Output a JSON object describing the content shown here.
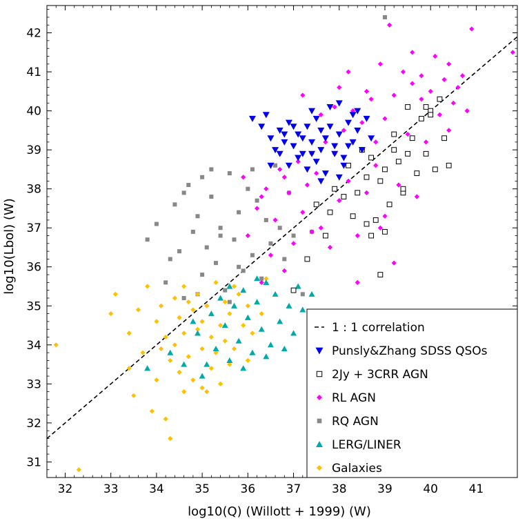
{
  "chart_data": {
    "type": "scatter",
    "xlabel": "log10(Q)  (Willott +  1999)  (W)",
    "ylabel": "log10(Lbol)  (W)",
    "xlim": [
      31.6,
      41.9
    ],
    "ylim": [
      30.6,
      42.7
    ],
    "xticks": [
      32,
      33,
      34,
      35,
      36,
      37,
      38,
      39,
      40,
      41
    ],
    "yticks": [
      31,
      32,
      33,
      34,
      35,
      36,
      37,
      38,
      39,
      40,
      41,
      42
    ],
    "grid": false,
    "legend_position": "bottom-right",
    "reference_line": {
      "name": "1 : 1 correlation",
      "style": "dashed",
      "color": "#000000",
      "x": [
        31.6,
        41.9
      ],
      "y": [
        31.6,
        41.9
      ]
    },
    "series": [
      {
        "name": "Punsly&Zhang SDSS QSOs",
        "marker": "triangle-down",
        "color": "#0000ee",
        "points": [
          [
            36.1,
            39.8
          ],
          [
            36.3,
            39.6
          ],
          [
            36.4,
            39.9
          ],
          [
            36.5,
            39.3
          ],
          [
            36.6,
            39.0
          ],
          [
            36.7,
            39.5
          ],
          [
            36.8,
            39.2
          ],
          [
            36.9,
            39.7
          ],
          [
            37.0,
            39.1
          ],
          [
            37.1,
            39.4
          ],
          [
            37.2,
            38.9
          ],
          [
            37.3,
            39.6
          ],
          [
            37.4,
            39.2
          ],
          [
            37.5,
            39.8
          ],
          [
            37.6,
            39.0
          ],
          [
            37.7,
            39.3
          ],
          [
            37.8,
            39.6
          ],
          [
            37.9,
            39.1
          ],
          [
            38.0,
            39.4
          ],
          [
            38.1,
            38.8
          ],
          [
            38.2,
            39.7
          ],
          [
            38.3,
            39.2
          ],
          [
            38.4,
            39.5
          ],
          [
            38.5,
            39.0
          ],
          [
            38.6,
            39.8
          ],
          [
            38.7,
            39.3
          ],
          [
            36.9,
            38.6
          ],
          [
            37.1,
            38.8
          ],
          [
            37.3,
            38.5
          ],
          [
            37.5,
            38.7
          ],
          [
            37.7,
            38.4
          ],
          [
            37.9,
            38.9
          ],
          [
            38.1,
            38.6
          ],
          [
            38.3,
            39.9
          ],
          [
            37.4,
            40.0
          ],
          [
            37.8,
            40.1
          ],
          [
            38.0,
            40.2
          ],
          [
            38.4,
            40.0
          ],
          [
            36.7,
            38.9
          ],
          [
            36.5,
            38.6
          ],
          [
            37.6,
            39.5
          ],
          [
            37.2,
            39.3
          ],
          [
            37.0,
            39.6
          ],
          [
            36.8,
            39.4
          ],
          [
            38.2,
            39.1
          ],
          [
            37.4,
            38.9
          ],
          [
            37.6,
            38.2
          ],
          [
            38.0,
            38.3
          ]
        ]
      },
      {
        "name": "2Jy + 3CRR AGN",
        "marker": "open-square",
        "color": "#000000",
        "points": [
          [
            37.0,
            35.4
          ],
          [
            37.3,
            36.2
          ],
          [
            37.5,
            37.6
          ],
          [
            37.8,
            37.4
          ],
          [
            37.9,
            38.0
          ],
          [
            38.1,
            37.8
          ],
          [
            38.2,
            38.6
          ],
          [
            38.4,
            37.9
          ],
          [
            38.5,
            39.0
          ],
          [
            38.6,
            38.3
          ],
          [
            38.7,
            38.8
          ],
          [
            38.8,
            37.2
          ],
          [
            38.9,
            38.2
          ],
          [
            39.0,
            38.5
          ],
          [
            39.1,
            37.6
          ],
          [
            39.2,
            39.4
          ],
          [
            39.3,
            38.7
          ],
          [
            39.4,
            37.9
          ],
          [
            39.5,
            38.9
          ],
          [
            39.6,
            39.3
          ],
          [
            39.7,
            38.4
          ],
          [
            39.8,
            39.8
          ],
          [
            39.9,
            38.9
          ],
          [
            40.0,
            40.0
          ],
          [
            40.1,
            38.5
          ],
          [
            40.3,
            39.3
          ],
          [
            40.4,
            38.6
          ],
          [
            38.3,
            37.3
          ],
          [
            38.6,
            37.1
          ],
          [
            39.0,
            36.9
          ],
          [
            39.2,
            39.0
          ],
          [
            39.5,
            40.1
          ],
          [
            39.9,
            40.1
          ],
          [
            40.2,
            40.3
          ],
          [
            38.7,
            36.8
          ],
          [
            39.4,
            38.0
          ],
          [
            37.7,
            36.8
          ],
          [
            38.9,
            35.8
          ],
          [
            40.0,
            39.9
          ]
        ]
      },
      {
        "name": "RL AGN",
        "marker": "diamond",
        "color": "#ff00ff",
        "points": [
          [
            35.9,
            38.3
          ],
          [
            36.0,
            36.8
          ],
          [
            36.2,
            37.5
          ],
          [
            36.3,
            35.6
          ],
          [
            36.4,
            38.0
          ],
          [
            36.5,
            36.3
          ],
          [
            36.6,
            37.2
          ],
          [
            36.7,
            38.5
          ],
          [
            36.8,
            35.9
          ],
          [
            36.9,
            37.9
          ],
          [
            37.0,
            36.6
          ],
          [
            37.1,
            38.7
          ],
          [
            37.2,
            37.4
          ],
          [
            37.3,
            38.1
          ],
          [
            37.4,
            36.9
          ],
          [
            37.5,
            38.4
          ],
          [
            37.6,
            37.0
          ],
          [
            37.7,
            39.2
          ],
          [
            37.8,
            36.5
          ],
          [
            37.9,
            38.9
          ],
          [
            38.0,
            37.7
          ],
          [
            38.1,
            39.5
          ],
          [
            38.2,
            38.2
          ],
          [
            38.3,
            40.0
          ],
          [
            38.4,
            36.8
          ],
          [
            38.5,
            39.7
          ],
          [
            38.6,
            37.9
          ],
          [
            38.7,
            40.3
          ],
          [
            38.8,
            38.6
          ],
          [
            38.9,
            41.2
          ],
          [
            39.0,
            39.8
          ],
          [
            39.1,
            42.2
          ],
          [
            39.2,
            40.4
          ],
          [
            39.3,
            38.1
          ],
          [
            39.4,
            41.0
          ],
          [
            39.5,
            39.4
          ],
          [
            39.6,
            40.7
          ],
          [
            39.7,
            37.8
          ],
          [
            39.8,
            40.9
          ],
          [
            39.9,
            39.2
          ],
          [
            40.0,
            40.5
          ],
          [
            40.1,
            41.4
          ],
          [
            40.2,
            39.9
          ],
          [
            40.3,
            40.8
          ],
          [
            40.4,
            39.5
          ],
          [
            40.5,
            40.2
          ],
          [
            40.6,
            40.6
          ],
          [
            40.8,
            40.0
          ],
          [
            40.9,
            42.1
          ],
          [
            41.8,
            41.5
          ],
          [
            37.2,
            40.4
          ],
          [
            37.6,
            39.9
          ],
          [
            38.0,
            40.6
          ],
          [
            38.4,
            35.6
          ],
          [
            39.2,
            36.1
          ],
          [
            39.8,
            40.3
          ],
          [
            36.3,
            37.8
          ],
          [
            36.8,
            38.3
          ],
          [
            37.4,
            38.9
          ],
          [
            38.6,
            40.5
          ],
          [
            39.0,
            37.3
          ],
          [
            40.7,
            40.9
          ],
          [
            38.2,
            41.0
          ],
          [
            38.8,
            39.2
          ],
          [
            39.6,
            41.5
          ],
          [
            37.9,
            40.1
          ],
          [
            40.4,
            41.2
          ],
          [
            38.9,
            37.0
          ]
        ]
      },
      {
        "name": "RQ AGN",
        "marker": "square",
        "color": "#888888",
        "points": [
          [
            33.8,
            36.7
          ],
          [
            34.0,
            37.1
          ],
          [
            34.2,
            35.6
          ],
          [
            34.3,
            36.2
          ],
          [
            34.4,
            37.6
          ],
          [
            34.5,
            36.4
          ],
          [
            34.6,
            35.2
          ],
          [
            34.7,
            38.1
          ],
          [
            34.8,
            36.9
          ],
          [
            34.9,
            37.3
          ],
          [
            35.0,
            35.8
          ],
          [
            35.0,
            38.3
          ],
          [
            35.1,
            36.5
          ],
          [
            35.2,
            37.8
          ],
          [
            35.3,
            36.1
          ],
          [
            35.4,
            37.0
          ],
          [
            35.5,
            35.4
          ],
          [
            35.6,
            38.4
          ],
          [
            35.7,
            36.7
          ],
          [
            35.8,
            37.4
          ],
          [
            35.9,
            35.9
          ],
          [
            36.0,
            38.0
          ],
          [
            36.1,
            36.3
          ],
          [
            36.2,
            37.7
          ],
          [
            36.3,
            35.7
          ],
          [
            36.4,
            37.2
          ],
          [
            36.5,
            36.6
          ],
          [
            36.6,
            38.6
          ],
          [
            36.7,
            37.0
          ],
          [
            36.8,
            36.2
          ],
          [
            36.9,
            37.9
          ],
          [
            37.0,
            36.8
          ],
          [
            37.2,
            35.3
          ],
          [
            37.4,
            36.9
          ],
          [
            39.0,
            42.4
          ],
          [
            35.2,
            38.5
          ],
          [
            34.9,
            35.3
          ],
          [
            35.6,
            35.1
          ],
          [
            36.1,
            38.5
          ],
          [
            35.4,
            36.8
          ],
          [
            34.6,
            37.9
          ],
          [
            35.8,
            36.0
          ]
        ]
      },
      {
        "name": "LERG/LINER",
        "marker": "triangle-up",
        "color": "#00aaaa",
        "points": [
          [
            33.8,
            33.4
          ],
          [
            34.3,
            33.8
          ],
          [
            34.6,
            33.5
          ],
          [
            34.9,
            34.3
          ],
          [
            35.0,
            33.2
          ],
          [
            35.2,
            34.8
          ],
          [
            35.3,
            33.9
          ],
          [
            35.4,
            35.2
          ],
          [
            35.5,
            34.5
          ],
          [
            35.6,
            33.6
          ],
          [
            35.7,
            35.0
          ],
          [
            35.8,
            34.1
          ],
          [
            35.9,
            35.4
          ],
          [
            36.0,
            34.7
          ],
          [
            36.1,
            33.8
          ],
          [
            36.2,
            35.1
          ],
          [
            36.3,
            34.4
          ],
          [
            36.4,
            35.6
          ],
          [
            36.5,
            34.0
          ],
          [
            36.6,
            35.3
          ],
          [
            36.7,
            34.6
          ],
          [
            36.8,
            33.9
          ],
          [
            36.9,
            35.0
          ],
          [
            37.0,
            34.3
          ],
          [
            37.1,
            35.5
          ],
          [
            37.2,
            34.9
          ],
          [
            37.4,
            35.3
          ],
          [
            37.5,
            34.8
          ],
          [
            35.1,
            33.5
          ],
          [
            35.9,
            33.4
          ],
          [
            36.4,
            33.7
          ],
          [
            34.8,
            34.6
          ],
          [
            35.6,
            35.5
          ],
          [
            36.2,
            35.7
          ]
        ]
      },
      {
        "name": "Galaxies",
        "marker": "diamond",
        "color": "#ffc000",
        "points": [
          [
            31.8,
            34.0
          ],
          [
            32.3,
            30.8
          ],
          [
            33.1,
            35.3
          ],
          [
            33.4,
            34.3
          ],
          [
            33.4,
            33.4
          ],
          [
            33.5,
            32.7
          ],
          [
            33.6,
            34.9
          ],
          [
            33.7,
            33.8
          ],
          [
            33.8,
            35.5
          ],
          [
            33.9,
            32.3
          ],
          [
            34.0,
            34.6
          ],
          [
            34.0,
            33.1
          ],
          [
            34.1,
            35.0
          ],
          [
            34.2,
            32.1
          ],
          [
            34.2,
            34.2
          ],
          [
            34.3,
            31.6
          ],
          [
            34.3,
            33.6
          ],
          [
            34.4,
            35.2
          ],
          [
            34.4,
            34.0
          ],
          [
            34.5,
            33.3
          ],
          [
            34.5,
            34.7
          ],
          [
            34.6,
            32.8
          ],
          [
            34.6,
            34.3
          ],
          [
            34.7,
            35.1
          ],
          [
            34.7,
            33.7
          ],
          [
            34.8,
            34.9
          ],
          [
            34.8,
            33.1
          ],
          [
            34.9,
            34.4
          ],
          [
            34.9,
            35.3
          ],
          [
            35.0,
            33.9
          ],
          [
            35.0,
            34.6
          ],
          [
            35.1,
            32.8
          ],
          [
            35.1,
            35.0
          ],
          [
            35.2,
            33.4
          ],
          [
            35.2,
            34.2
          ],
          [
            35.3,
            35.6
          ],
          [
            35.3,
            33.8
          ],
          [
            35.4,
            34.5
          ],
          [
            35.4,
            33.0
          ],
          [
            35.5,
            35.1
          ],
          [
            35.5,
            34.1
          ],
          [
            35.6,
            33.5
          ],
          [
            35.6,
            34.8
          ],
          [
            35.7,
            33.9
          ],
          [
            35.8,
            35.3
          ],
          [
            35.9,
            34.5
          ],
          [
            36.0,
            33.6
          ],
          [
            36.0,
            35.0
          ],
          [
            36.1,
            34.3
          ],
          [
            36.3,
            34.8
          ],
          [
            36.4,
            35.7
          ],
          [
            33.0,
            34.8
          ],
          [
            34.1,
            33.9
          ],
          [
            34.6,
            35.5
          ],
          [
            35.0,
            32.9
          ],
          [
            35.7,
            35.5
          ]
        ]
      }
    ]
  }
}
